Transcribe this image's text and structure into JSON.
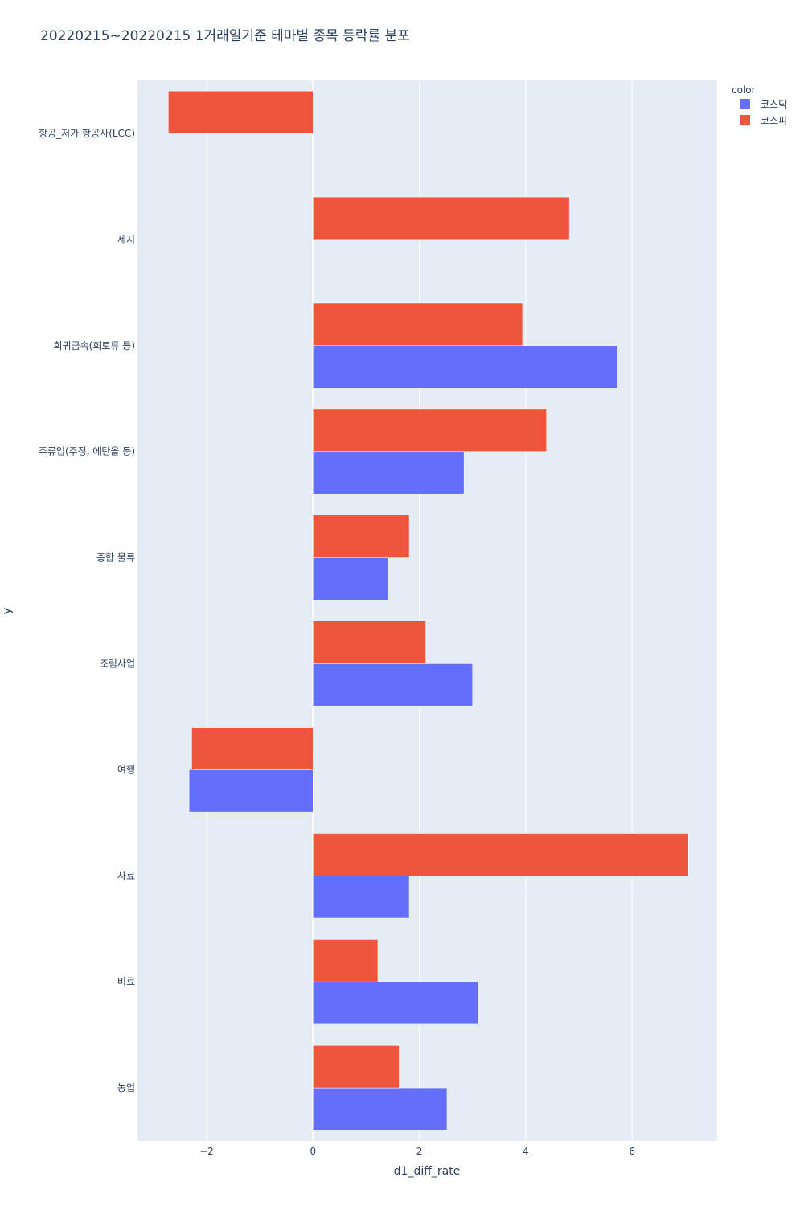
{
  "chart_data": {
    "type": "bar",
    "orientation": "horizontal",
    "title": "20220215~20220215 1거래일기준 테마별 종목 등락률 분포",
    "xlabel": "d1_diff_rate",
    "ylabel": "y",
    "xlim": [
      -3.3,
      7.6
    ],
    "xticks": [
      -2,
      0,
      2,
      4,
      6
    ],
    "xtick_labels": [
      "−2",
      "0",
      "2",
      "4",
      "6"
    ],
    "categories": [
      "항공_저가 항공사(LCC)",
      "제지",
      "희귀금속(희토류 등)",
      "주류업(주정, 에탄올 등)",
      "종합 물류",
      "조림사업",
      "여행",
      "사료",
      "비료",
      "농업"
    ],
    "series": [
      {
        "name": "코스닥",
        "color": "#636efa",
        "values": [
          null,
          null,
          5.73,
          2.84,
          1.41,
          3.0,
          -2.33,
          1.81,
          3.1,
          2.52
        ]
      },
      {
        "name": "코스피",
        "color": "#ef553b",
        "values": [
          -2.72,
          4.82,
          3.94,
          4.39,
          1.81,
          2.12,
          -2.28,
          7.06,
          1.22,
          1.62
        ]
      }
    ],
    "legend": {
      "title": "color",
      "position": "top-right"
    }
  }
}
